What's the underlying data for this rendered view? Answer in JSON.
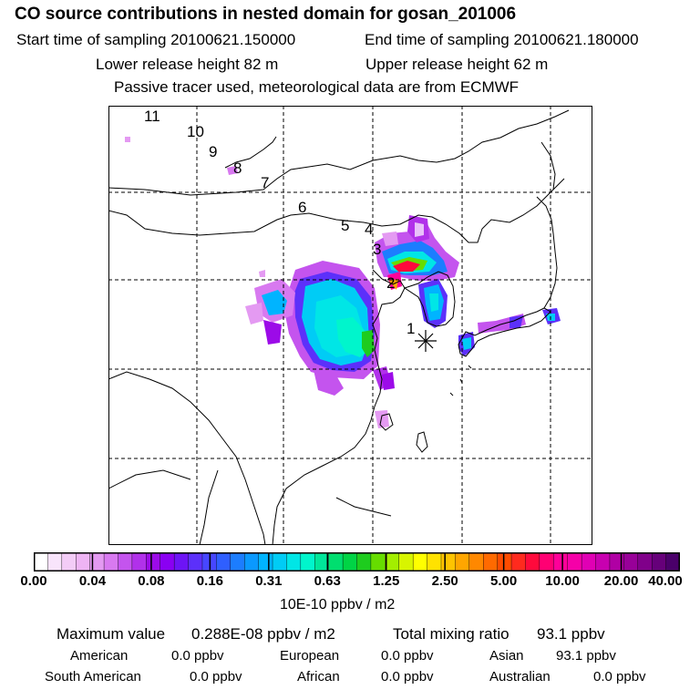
{
  "header": {
    "title": "CO  source contributions in nested domain for gosan_201006",
    "start_time": "Start time of sampling 20100621.150000",
    "end_time": "End time of sampling 20100621.180000",
    "lower_release": "Lower release height   82 m",
    "upper_release": "Upper release height   62 m",
    "tracer_note": "Passive tracer used, meteorological data are from ECMWF"
  },
  "map": {
    "trajectory_labels": [
      "11",
      "10",
      "9",
      "8",
      "7",
      "6",
      "5",
      "4",
      "3",
      "2",
      "1"
    ],
    "receptor_marker": "asterisk-marker"
  },
  "colorbar": {
    "tick_labels": [
      "0.00",
      "0.04",
      "0.08",
      "0.16",
      "0.31",
      "0.63",
      "1.25",
      "2.50",
      "5.00",
      "10.00",
      "20.00",
      "40.00"
    ],
    "units": "10E-10 ppbv / m2",
    "colors": [
      "#ffffff",
      "#f8e4fb",
      "#f3ccf7",
      "#eeb4f4",
      "#e49af2",
      "#d879f0",
      "#c454ee",
      "#b131ea",
      "#9c0be8",
      "#8a00f2",
      "#6d14f5",
      "#5c30fa",
      "#4747ff",
      "#2f5fff",
      "#1c7dff",
      "#0a99ff",
      "#00b4ff",
      "#00ccf5",
      "#00e6e6",
      "#00f5cc",
      "#00e69a",
      "#00de6f",
      "#00d445",
      "#1ecc1e",
      "#66dd00",
      "#a3ee00",
      "#d8f500",
      "#ffff00",
      "#ffe200",
      "#ffc400",
      "#ffa600",
      "#ff8800",
      "#ff6a00",
      "#ff4c00",
      "#ff2a1e",
      "#ff0a3c",
      "#ff0073",
      "#ff0099",
      "#f500a8",
      "#e000b4",
      "#c800b0",
      "#b000a4",
      "#980098",
      "#80008a",
      "#66007a",
      "#4a006a"
    ]
  },
  "summary": {
    "max_label": "Maximum value",
    "max_value": "0.288E-08 ppbv / m2",
    "total_label": "Total mixing ratio",
    "total_value": "93.1 ppbv",
    "regions": [
      {
        "name": "American",
        "value": "0.0 ppbv"
      },
      {
        "name": "European",
        "value": "0.0 ppbv"
      },
      {
        "name": "Asian",
        "value": "93.1 ppbv"
      },
      {
        "name": "South American",
        "value": "0.0 ppbv"
      },
      {
        "name": "African",
        "value": "0.0 ppbv"
      },
      {
        "name": "Australian",
        "value": "0.0 ppbv"
      }
    ]
  }
}
